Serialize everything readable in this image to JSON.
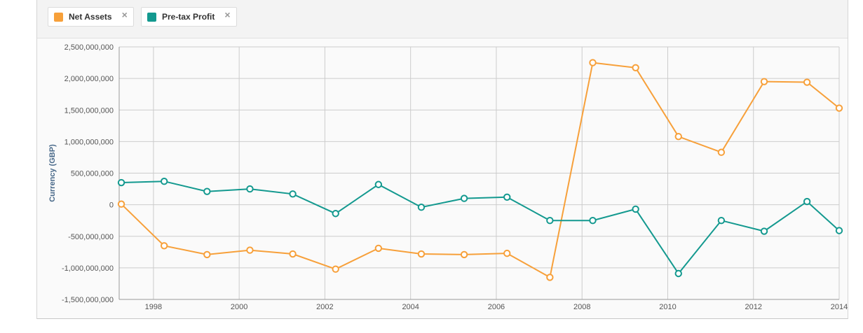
{
  "legend": [
    {
      "label": "Net Assets",
      "color": "#f7a03a",
      "close_icon": "×"
    },
    {
      "label": "Pre-tax Profit",
      "color": "#13998f",
      "close_icon": "×"
    }
  ],
  "chart_data": {
    "type": "line",
    "title": "",
    "xlabel": "",
    "ylabel": "Currency (GBP)",
    "xlim": [
      1997.2,
      2014.0
    ],
    "ylim": [
      -1500000000,
      2500000000
    ],
    "yticks": [
      2500000000,
      2000000000,
      1500000000,
      1000000000,
      500000000,
      0,
      -500000000,
      -1000000000,
      -1500000000
    ],
    "ytick_labels": [
      "2,500,000,000",
      "2,000,000,000",
      "1,500,000,000",
      "1,000,000,000",
      "500,000,000",
      "0",
      "-500,000,000",
      "-1,000,000,000",
      "-1,500,000,000"
    ],
    "xticks": [
      1998,
      2000,
      2002,
      2004,
      2006,
      2008,
      2010,
      2012,
      2014
    ],
    "xtick_labels": [
      "1998",
      "2000",
      "2002",
      "2004",
      "2006",
      "2008",
      "2010",
      "2012",
      "2014"
    ],
    "x": [
      1997.25,
      1998.25,
      1999.25,
      2000.25,
      2001.25,
      2002.25,
      2003.25,
      2004.25,
      2005.25,
      2006.25,
      2007.25,
      2008.25,
      2009.25,
      2010.25,
      2011.25,
      2012.25,
      2013.25,
      2014.0
    ],
    "series": [
      {
        "name": "Net Assets",
        "color": "#f7a03a",
        "values": [
          10000000,
          -650000000,
          -790000000,
          -720000000,
          -780000000,
          -1020000000,
          -690000000,
          -780000000,
          -790000000,
          -770000000,
          -1150000000,
          2250000000,
          2170000000,
          1080000000,
          830000000,
          1950000000,
          1940000000,
          1530000000
        ]
      },
      {
        "name": "Pre-tax Profit",
        "color": "#13998f",
        "values": [
          350000000,
          370000000,
          210000000,
          250000000,
          170000000,
          -140000000,
          320000000,
          -40000000,
          100000000,
          120000000,
          -250000000,
          -250000000,
          -70000000,
          -1090000000,
          -250000000,
          -420000000,
          50000000,
          -410000000
        ]
      }
    ]
  }
}
